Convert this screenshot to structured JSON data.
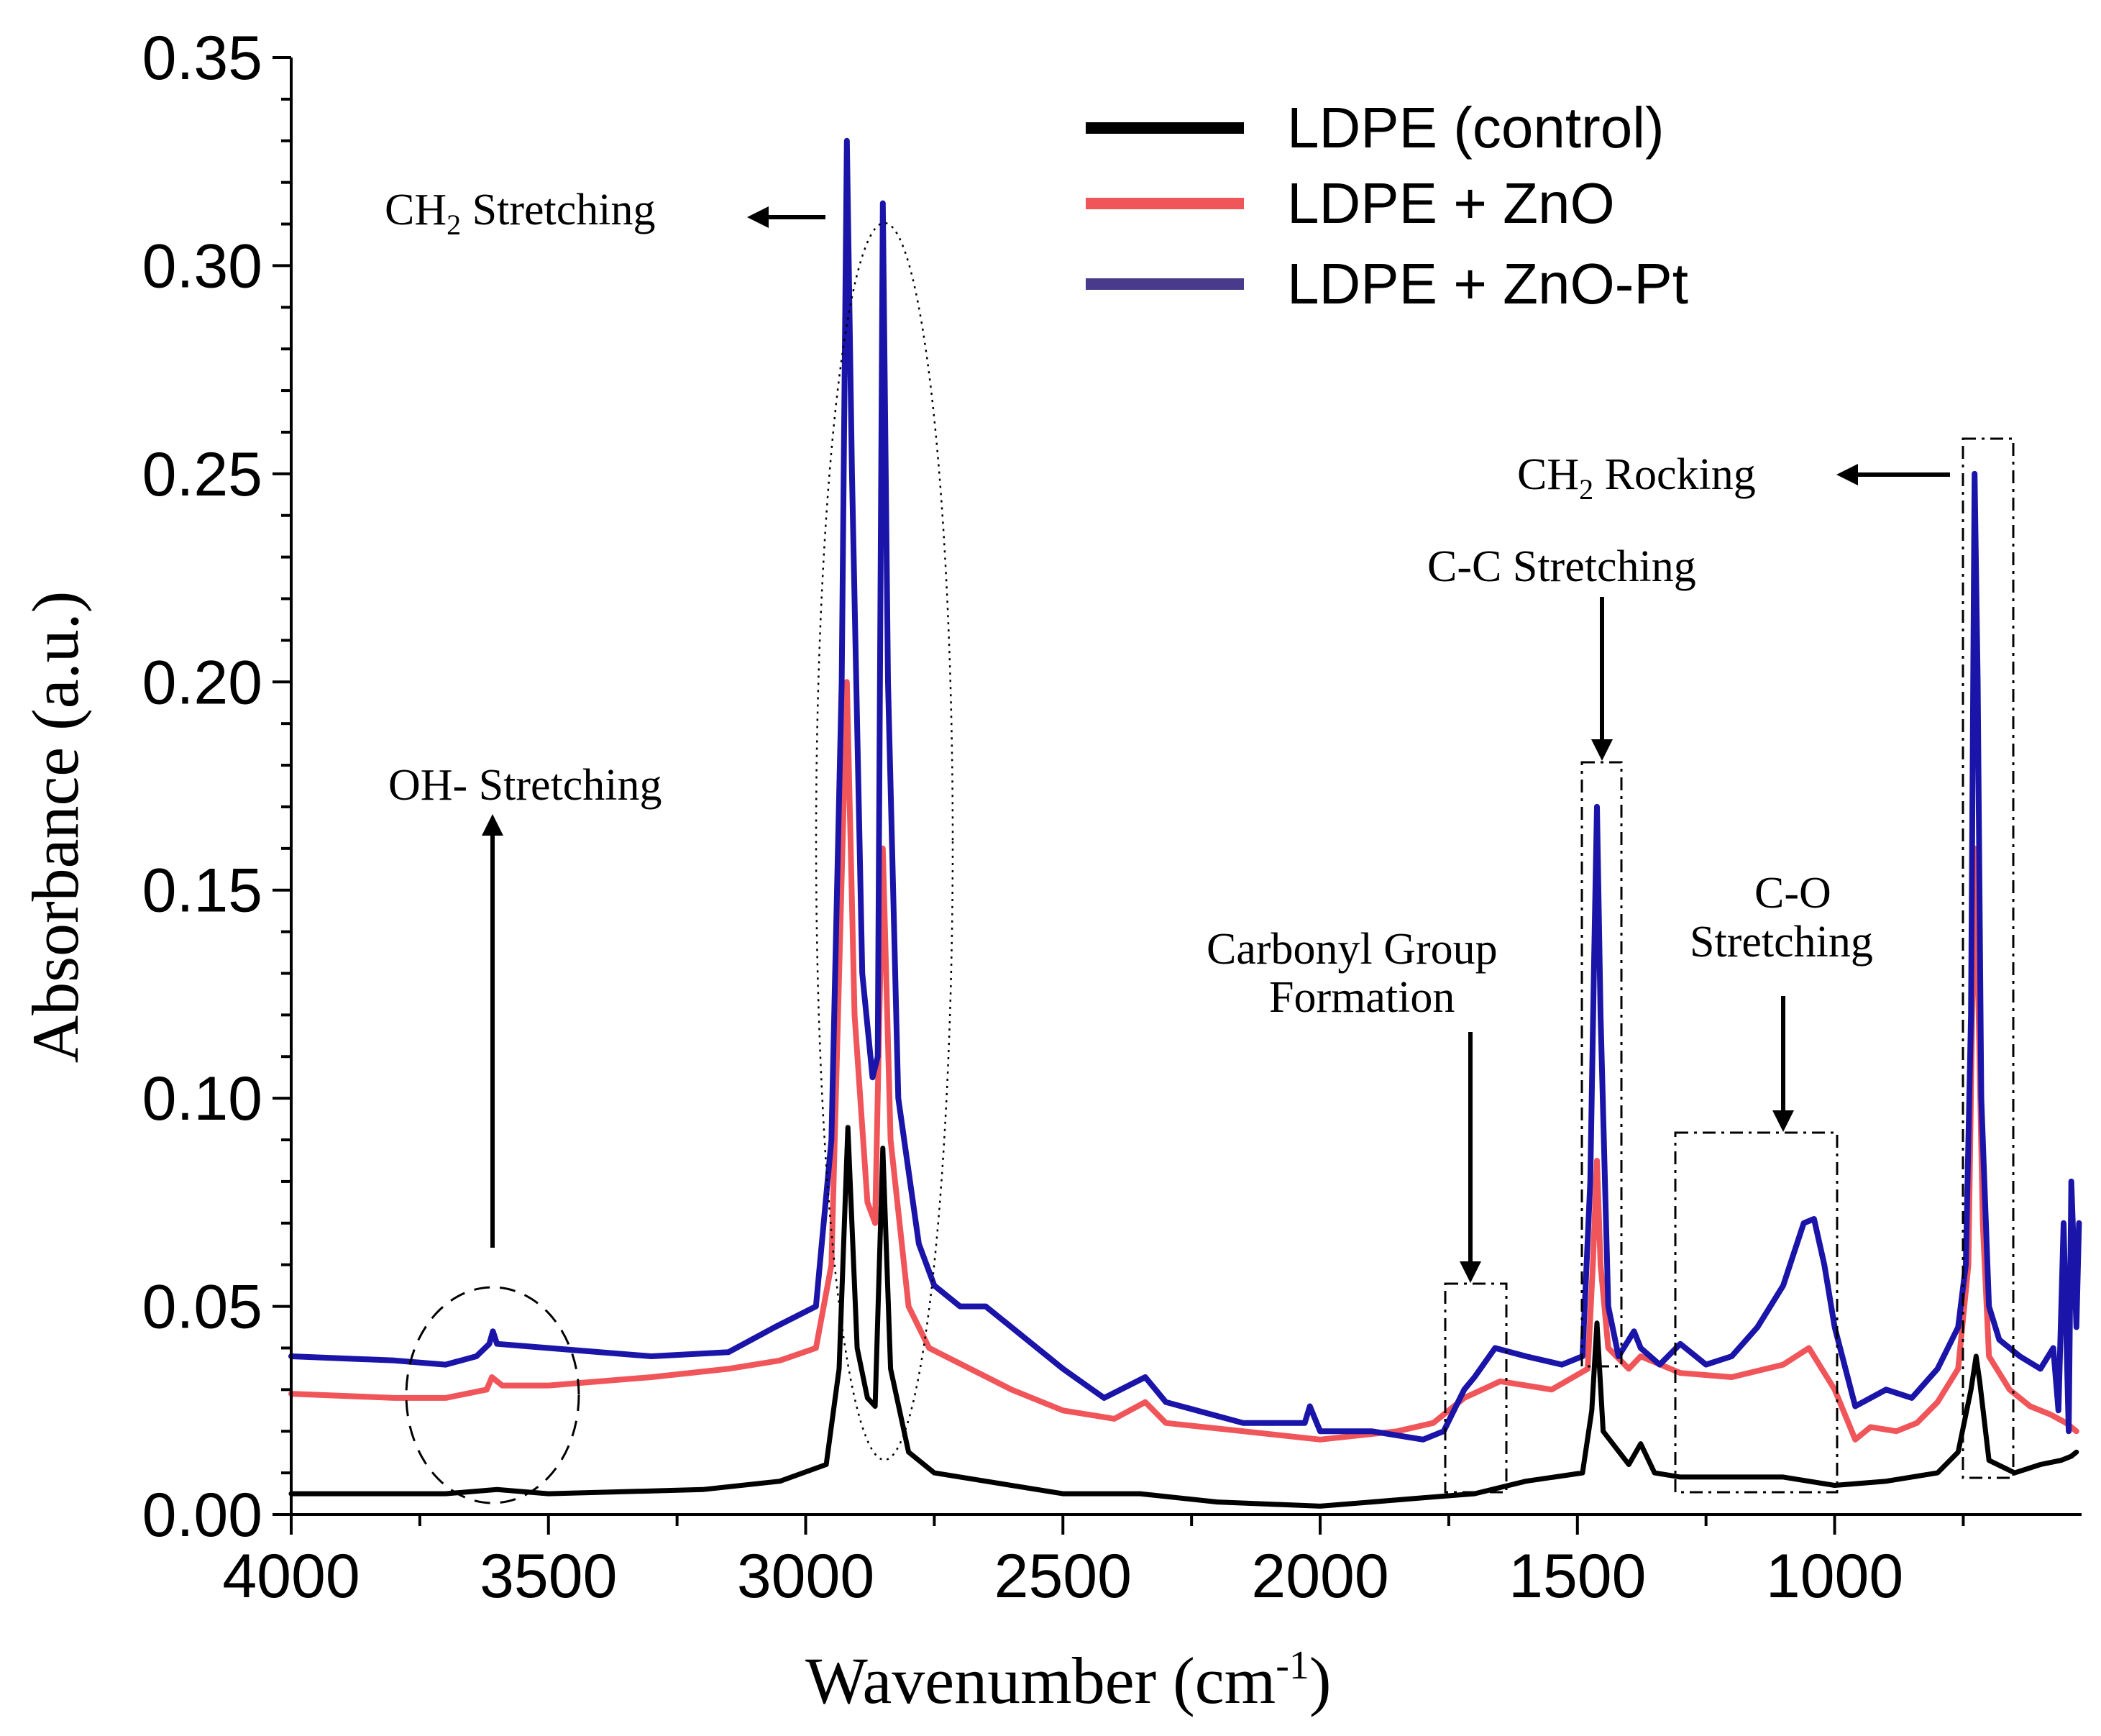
{
  "chart_data": {
    "type": "line",
    "title": "",
    "xlabel": "Wavenumber (cm",
    "xlabel_sup": "-1",
    "xlabel_close": ")",
    "ylabel": "Absorbance (a.u.)",
    "xlim": [
      4000,
      520
    ],
    "ylim": [
      0,
      0.35
    ],
    "x_ticks": [
      4000,
      3500,
      3000,
      2500,
      2000,
      1500,
      1000
    ],
    "y_ticks": [
      "0.00",
      "0.05",
      "0.10",
      "0.15",
      "0.20",
      "0.25",
      "0.30",
      "0.35"
    ],
    "legend_position": "top-right",
    "series": [
      {
        "name": "LDPE (control)",
        "color": "#000000",
        "points": [
          [
            4000,
            0.005
          ],
          [
            3700,
            0.005
          ],
          [
            3600,
            0.006
          ],
          [
            3500,
            0.005
          ],
          [
            3200,
            0.006
          ],
          [
            3050,
            0.008
          ],
          [
            2960,
            0.012
          ],
          [
            2935,
            0.035
          ],
          [
            2918,
            0.093
          ],
          [
            2900,
            0.04
          ],
          [
            2880,
            0.028
          ],
          [
            2865,
            0.026
          ],
          [
            2850,
            0.088
          ],
          [
            2835,
            0.035
          ],
          [
            2800,
            0.015
          ],
          [
            2750,
            0.01
          ],
          [
            2650,
            0.008
          ],
          [
            2500,
            0.005
          ],
          [
            2350,
            0.005
          ],
          [
            2200,
            0.003
          ],
          [
            2000,
            0.002
          ],
          [
            1800,
            0.004
          ],
          [
            1700,
            0.005
          ],
          [
            1600,
            0.008
          ],
          [
            1490,
            0.01
          ],
          [
            1472,
            0.025
          ],
          [
            1462,
            0.046
          ],
          [
            1450,
            0.02
          ],
          [
            1400,
            0.012
          ],
          [
            1377,
            0.017
          ],
          [
            1350,
            0.01
          ],
          [
            1300,
            0.009
          ],
          [
            1100,
            0.009
          ],
          [
            1000,
            0.007
          ],
          [
            900,
            0.008
          ],
          [
            800,
            0.01
          ],
          [
            760,
            0.015
          ],
          [
            735,
            0.03
          ],
          [
            725,
            0.038
          ],
          [
            718,
            0.032
          ],
          [
            700,
            0.013
          ],
          [
            650,
            0.01
          ],
          [
            600,
            0.012
          ],
          [
            560,
            0.013
          ],
          [
            540,
            0.014
          ],
          [
            530,
            0.015
          ]
        ]
      },
      {
        "name": "LDPE + ZnO",
        "color": "#f0555a",
        "points": [
          [
            4000,
            0.029
          ],
          [
            3800,
            0.028
          ],
          [
            3700,
            0.028
          ],
          [
            3620,
            0.03
          ],
          [
            3610,
            0.033
          ],
          [
            3590,
            0.031
          ],
          [
            3500,
            0.031
          ],
          [
            3300,
            0.033
          ],
          [
            3150,
            0.035
          ],
          [
            3050,
            0.037
          ],
          [
            2980,
            0.04
          ],
          [
            2950,
            0.06
          ],
          [
            2920,
            0.2
          ],
          [
            2905,
            0.12
          ],
          [
            2880,
            0.075
          ],
          [
            2865,
            0.07
          ],
          [
            2850,
            0.16
          ],
          [
            2835,
            0.09
          ],
          [
            2800,
            0.05
          ],
          [
            2760,
            0.04
          ],
          [
            2680,
            0.035
          ],
          [
            2600,
            0.03
          ],
          [
            2500,
            0.025
          ],
          [
            2400,
            0.023
          ],
          [
            2340,
            0.027
          ],
          [
            2300,
            0.022
          ],
          [
            2150,
            0.02
          ],
          [
            2000,
            0.018
          ],
          [
            1850,
            0.02
          ],
          [
            1780,
            0.022
          ],
          [
            1720,
            0.028
          ],
          [
            1650,
            0.032
          ],
          [
            1550,
            0.03
          ],
          [
            1480,
            0.035
          ],
          [
            1470,
            0.06
          ],
          [
            1462,
            0.085
          ],
          [
            1455,
            0.06
          ],
          [
            1440,
            0.04
          ],
          [
            1400,
            0.035
          ],
          [
            1377,
            0.038
          ],
          [
            1300,
            0.034
          ],
          [
            1200,
            0.033
          ],
          [
            1100,
            0.036
          ],
          [
            1050,
            0.04
          ],
          [
            1000,
            0.03
          ],
          [
            960,
            0.018
          ],
          [
            930,
            0.021
          ],
          [
            880,
            0.02
          ],
          [
            840,
            0.022
          ],
          [
            800,
            0.027
          ],
          [
            760,
            0.035
          ],
          [
            740,
            0.06
          ],
          [
            728,
            0.16
          ],
          [
            720,
            0.12
          ],
          [
            712,
            0.07
          ],
          [
            700,
            0.038
          ],
          [
            660,
            0.03
          ],
          [
            620,
            0.026
          ],
          [
            580,
            0.024
          ],
          [
            550,
            0.022
          ],
          [
            530,
            0.02
          ]
        ]
      },
      {
        "name": "LDPE + ZnO-Pt",
        "color": "#1a14a8",
        "points": [
          [
            4000,
            0.038
          ],
          [
            3800,
            0.037
          ],
          [
            3700,
            0.036
          ],
          [
            3640,
            0.038
          ],
          [
            3615,
            0.041
          ],
          [
            3608,
            0.044
          ],
          [
            3600,
            0.041
          ],
          [
            3500,
            0.04
          ],
          [
            3300,
            0.038
          ],
          [
            3150,
            0.039
          ],
          [
            3060,
            0.045
          ],
          [
            2980,
            0.05
          ],
          [
            2950,
            0.09
          ],
          [
            2930,
            0.2
          ],
          [
            2920,
            0.33
          ],
          [
            2910,
            0.25
          ],
          [
            2890,
            0.13
          ],
          [
            2870,
            0.105
          ],
          [
            2860,
            0.11
          ],
          [
            2850,
            0.315
          ],
          [
            2840,
            0.2
          ],
          [
            2820,
            0.1
          ],
          [
            2780,
            0.065
          ],
          [
            2750,
            0.055
          ],
          [
            2700,
            0.05
          ],
          [
            2650,
            0.05
          ],
          [
            2600,
            0.045
          ],
          [
            2500,
            0.035
          ],
          [
            2420,
            0.028
          ],
          [
            2340,
            0.033
          ],
          [
            2300,
            0.027
          ],
          [
            2150,
            0.022
          ],
          [
            2030,
            0.022
          ],
          [
            2020,
            0.026
          ],
          [
            2000,
            0.02
          ],
          [
            1900,
            0.02
          ],
          [
            1800,
            0.018
          ],
          [
            1760,
            0.02
          ],
          [
            1720,
            0.03
          ],
          [
            1700,
            0.033
          ],
          [
            1660,
            0.04
          ],
          [
            1600,
            0.038
          ],
          [
            1530,
            0.036
          ],
          [
            1490,
            0.038
          ],
          [
            1475,
            0.08
          ],
          [
            1468,
            0.13
          ],
          [
            1462,
            0.17
          ],
          [
            1455,
            0.12
          ],
          [
            1440,
            0.05
          ],
          [
            1420,
            0.038
          ],
          [
            1390,
            0.044
          ],
          [
            1377,
            0.04
          ],
          [
            1340,
            0.036
          ],
          [
            1300,
            0.041
          ],
          [
            1250,
            0.036
          ],
          [
            1200,
            0.038
          ],
          [
            1150,
            0.045
          ],
          [
            1100,
            0.055
          ],
          [
            1060,
            0.07
          ],
          [
            1040,
            0.071
          ],
          [
            1020,
            0.06
          ],
          [
            1000,
            0.045
          ],
          [
            960,
            0.026
          ],
          [
            900,
            0.03
          ],
          [
            850,
            0.028
          ],
          [
            800,
            0.035
          ],
          [
            760,
            0.045
          ],
          [
            745,
            0.06
          ],
          [
            735,
            0.12
          ],
          [
            728,
            0.25
          ],
          [
            722,
            0.2
          ],
          [
            715,
            0.1
          ],
          [
            700,
            0.05
          ],
          [
            680,
            0.042
          ],
          [
            640,
            0.038
          ],
          [
            600,
            0.035
          ],
          [
            575,
            0.04
          ],
          [
            565,
            0.025
          ],
          [
            555,
            0.07
          ],
          [
            545,
            0.02
          ],
          [
            540,
            0.08
          ],
          [
            530,
            0.045
          ],
          [
            525,
            0.07
          ]
        ]
      }
    ],
    "annotations": {
      "ch2_stretching_label": "CH",
      "ch2_stretching_sub": "2",
      "ch2_stretching_rest": " Stretching",
      "oh_stretching": "OH- Stretching",
      "ch2_rocking_label": "CH",
      "ch2_rocking_sub": "2",
      "ch2_rocking_rest": " Rocking",
      "cc_stretching": "C-C Stretching",
      "co_line1": "C-O",
      "co_line2": "Stretching",
      "carbonyl_line1": "Carbonyl Group",
      "carbonyl_line2": "Formation"
    }
  }
}
